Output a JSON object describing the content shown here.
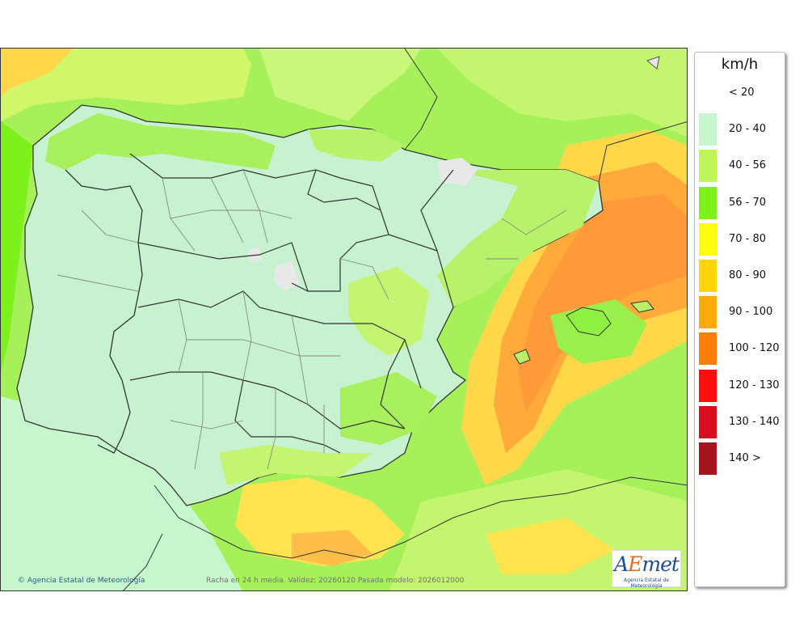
{
  "legend": {
    "title": "km/h",
    "items": [
      {
        "label": "< 20",
        "color": "#ffffff"
      },
      {
        "label": "20 - 40",
        "color": "#c6f7cc"
      },
      {
        "label": "40 - 56",
        "color": "#c0f557"
      },
      {
        "label": "56 - 70",
        "color": "#7ef01c"
      },
      {
        "label": "70 - 80",
        "color": "#ffff10"
      },
      {
        "label": "80 - 90",
        "color": "#ffd40a"
      },
      {
        "label": "90 - 100",
        "color": "#ffaa07"
      },
      {
        "label": "100 - 120",
        "color": "#ff7f0a"
      },
      {
        "label": "120 - 130",
        "color": "#ff0e0e"
      },
      {
        "label": "130 - 140",
        "color": "#d80e1e"
      },
      {
        "label": "140 >",
        "color": "#a5141c"
      }
    ]
  },
  "map": {
    "credit": "Agencia Estatal de Meteorología",
    "caption": "Racha en 24 h media. Validez: 20260120 Pasada modelo: 2026012000"
  },
  "logo": {
    "text": "AEmet",
    "subtitle": "Agencia Estatal de Meteorología"
  }
}
